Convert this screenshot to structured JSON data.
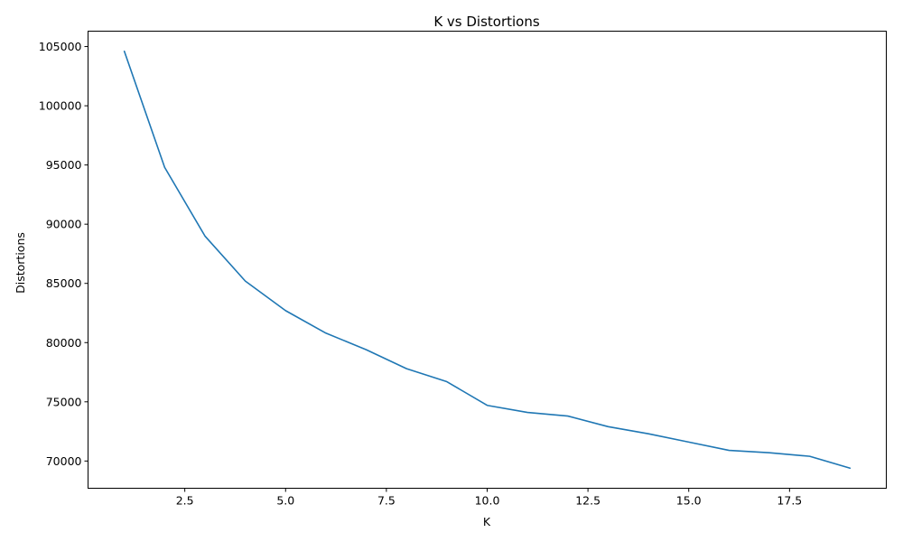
{
  "chart_data": {
    "type": "line",
    "title": "K vs Distortions",
    "xlabel": "K",
    "ylabel": "Distortions",
    "xlim": [
      0.1,
      19.9
    ],
    "ylim": [
      67700,
      106300
    ],
    "x_ticks": [
      2.5,
      5.0,
      7.5,
      10.0,
      12.5,
      15.0,
      17.5
    ],
    "x_tick_labels": [
      "2.5",
      "5.0",
      "7.5",
      "10.0",
      "12.5",
      "15.0",
      "17.5"
    ],
    "y_ticks": [
      70000,
      75000,
      80000,
      85000,
      90000,
      95000,
      100000,
      105000
    ],
    "y_tick_labels": [
      "70000",
      "75000",
      "80000",
      "85000",
      "90000",
      "95000",
      "100000",
      "105000"
    ],
    "grid": false,
    "series": [
      {
        "color": "#1f77b4",
        "x": [
          1,
          2,
          3,
          4,
          5,
          6,
          7,
          8,
          9,
          10,
          11,
          12,
          13,
          14,
          15,
          16,
          17,
          18,
          19
        ],
        "values": [
          104600,
          94800,
          89000,
          85200,
          82700,
          80800,
          79400,
          77800,
          76700,
          74700,
          74100,
          73800,
          72900,
          72300,
          71600,
          70900,
          70700,
          70400,
          69400
        ]
      }
    ]
  }
}
